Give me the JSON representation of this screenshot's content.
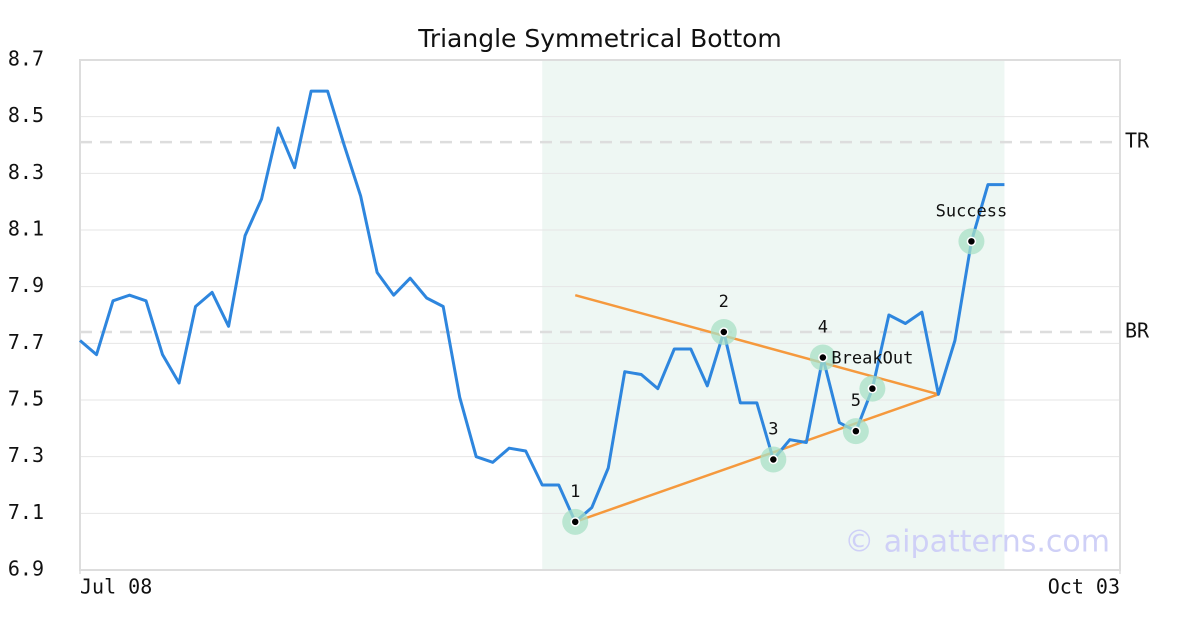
{
  "chart_data": {
    "type": "line",
    "title": "Triangle Symmetrical Bottom",
    "x": [
      0,
      1,
      2,
      3,
      4,
      5,
      6,
      7,
      8,
      9,
      10,
      11,
      12,
      13,
      14,
      15,
      16,
      17,
      18,
      19,
      20,
      21,
      22,
      23,
      24,
      25,
      26,
      27,
      28,
      29,
      30,
      31,
      32,
      33,
      34,
      35,
      36,
      37,
      38,
      39,
      40,
      41,
      42,
      43,
      44,
      45,
      46,
      47,
      48,
      49,
      50,
      51,
      52,
      53,
      54,
      55,
      56
    ],
    "values": [
      7.71,
      7.66,
      7.85,
      7.87,
      7.85,
      7.66,
      7.56,
      7.83,
      7.88,
      7.76,
      8.08,
      8.21,
      8.46,
      8.32,
      8.59,
      8.59,
      8.4,
      8.22,
      7.95,
      7.87,
      7.93,
      7.86,
      7.83,
      7.51,
      7.3,
      7.28,
      7.33,
      7.32,
      7.2,
      7.2,
      7.07,
      7.12,
      7.26,
      7.6,
      7.59,
      7.54,
      7.68,
      7.68,
      7.55,
      7.74,
      7.49,
      7.49,
      7.29,
      7.36,
      7.35,
      7.65,
      7.42,
      7.39,
      7.54,
      7.8,
      7.77,
      7.81,
      7.52,
      7.71,
      8.06,
      8.26,
      8.26
    ],
    "color": "#2e86de",
    "xlim": [
      0,
      63
    ],
    "xticks": [
      {
        "value": 0,
        "label": "Jul 08"
      },
      {
        "value": 63,
        "label": "Oct 03"
      }
    ],
    "ylim": [
      6.9,
      8.7
    ],
    "yticks": [
      6.9,
      7.1,
      7.3,
      7.5,
      7.7,
      7.9,
      8.1,
      8.3,
      8.5,
      8.7
    ],
    "grid": true,
    "highlight": {
      "start": 28,
      "end": 56,
      "color": "#eef7f3"
    },
    "reference_lines": [
      {
        "label": "TR",
        "value": 8.41
      },
      {
        "label": "BR",
        "value": 7.74
      }
    ],
    "trend_lines": {
      "color": "#f5993d",
      "lines": [
        {
          "x": [
            30,
            52
          ],
          "y": [
            7.87,
            7.52
          ]
        },
        {
          "x": [
            30,
            52
          ],
          "y": [
            7.07,
            7.52
          ]
        }
      ]
    },
    "annotations": [
      {
        "label": "1",
        "x": 30
      },
      {
        "label": "2",
        "x": 39
      },
      {
        "label": "3",
        "x": 42
      },
      {
        "label": "4",
        "x": 45
      },
      {
        "label": "5",
        "x": 47
      },
      {
        "label": "BreakOut",
        "x": 48
      },
      {
        "label": "Success",
        "x": 54
      }
    ],
    "watermark": "© aipatterns.com"
  }
}
